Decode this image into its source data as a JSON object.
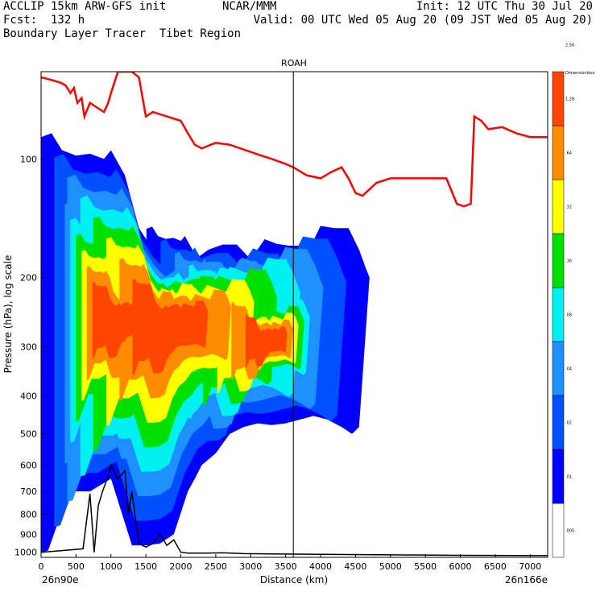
{
  "header": {
    "line1_left": "ACCLIP 15km ARW-GFS init",
    "line1_center": "NCAR/MMM",
    "line1_right": "Init: 12 UTC Thu 30 Jul 20",
    "line2_left": "Fcst:  132 h",
    "line2_right": "Valid: 00 UTC Wed 05 Aug 20 (09 JST Wed 05 Aug 20)",
    "line3_left": "Boundary Layer Tracer  Tibet Region"
  },
  "chart_data": {
    "type": "cross-section contour",
    "title": "ROAH",
    "xlabel": "Distance (km)",
    "ylabel": "Pressure (hPa), log scale",
    "x_start_label": "26n90e",
    "x_end_label": "26n166e",
    "xlim": [
      0,
      7250
    ],
    "ylim": [
      1030,
      60
    ],
    "y_scale": "log",
    "x_ticks": [
      0,
      500,
      1000,
      1500,
      2000,
      2500,
      3000,
      3500,
      4000,
      4500,
      5000,
      5500,
      6000,
      6500,
      7000
    ],
    "y_ticks": [
      100,
      200,
      300,
      400,
      500,
      600,
      700,
      800,
      900,
      1000
    ],
    "vertical_marker_km": 3610,
    "colorbar": {
      "title": "Dimensionless",
      "levels": [
        ".005",
        ".01",
        ".02",
        ".04",
        ".08",
        ".16",
        ".32",
        ".64",
        "1.28",
        "2.56"
      ],
      "colors": [
        "#ffffff",
        "#0000ff",
        "#0050ff",
        "#1e90ff",
        "#00f0f0",
        "#00e000",
        "#ffff00",
        "#ff8c00",
        "#ff4500"
      ]
    },
    "tropopause_line": {
      "color": "#ff0000",
      "x": [
        0,
        150,
        280,
        350,
        420,
        470,
        520,
        580,
        620,
        700,
        800,
        900,
        960,
        1000,
        1100,
        1200,
        1300,
        1400,
        1500,
        1600,
        1800,
        2000,
        2100,
        2200,
        2300,
        2500,
        2700,
        3000,
        3150,
        3300,
        3500,
        3610,
        3800,
        4000,
        4150,
        4300,
        4400,
        4500,
        4600,
        4800,
        5000,
        5200,
        5400,
        5600,
        5800,
        5950,
        6050,
        6150,
        6200,
        6300,
        6400,
        6600,
        6800,
        7000,
        7250
      ],
      "y": [
        62,
        63,
        64,
        65,
        68,
        66,
        72,
        70,
        78,
        72,
        74,
        76,
        72,
        68,
        60,
        60,
        60,
        62,
        78,
        76,
        78,
        80,
        86,
        92,
        94,
        91,
        92,
        96,
        98,
        100,
        103,
        105,
        110,
        112,
        108,
        105,
        112,
        122,
        124,
        115,
        112,
        112,
        112,
        112,
        112,
        130,
        132,
        130,
        78,
        80,
        84,
        83,
        86,
        88,
        88
      ]
    },
    "terrain_line": {
      "color": "#000000",
      "x": [
        0,
        300,
        600,
        700,
        760,
        820,
        880,
        960,
        1000,
        1100,
        1200,
        1250,
        1300,
        1350,
        1400,
        1500,
        1600,
        1700,
        1800,
        1900,
        2000,
        2100,
        2300,
        2600,
        2900,
        3300,
        4000,
        5000,
        6000,
        7250
      ],
      "y": [
        1000,
        990,
        980,
        710,
        1000,
        760,
        700,
        640,
        600,
        650,
        620,
        800,
        700,
        820,
        950,
        970,
        950,
        900,
        960,
        930,
        1000,
        1005,
        1005,
        1003,
        1008,
        1010,
        1012,
        1015,
        1018,
        1020
      ]
    },
    "tracer_contours": [
      {
        "level": ".01",
        "x": [
          0,
          150,
          300,
          500,
          700,
          900,
          1000,
          1200,
          1400,
          1600,
          1800,
          1900,
          2000,
          2100,
          2200,
          2400,
          2600,
          2800,
          3000,
          3200,
          3400,
          3600,
          3800,
          4000,
          4200,
          4400,
          4550,
          4650,
          4700,
          4550,
          4450,
          4300,
          4100,
          3900,
          3700,
          3500,
          3300,
          3100,
          2900,
          2700,
          2500,
          2300,
          2200,
          2100,
          1900,
          1700,
          1500,
          1300,
          1000,
          700,
          400,
          100,
          0
        ],
        "y": [
          88,
          86,
          95,
          98,
          97,
          100,
          95,
          110,
          150,
          170,
          185,
          180,
          175,
          168,
          180,
          170,
          165,
          165,
          180,
          160,
          165,
          170,
          175,
          148,
          150,
          150,
          170,
          190,
          200,
          480,
          500,
          480,
          460,
          450,
          460,
          470,
          475,
          470,
          480,
          500,
          560,
          600,
          650,
          700,
          900,
          950,
          960,
          960,
          650,
          700,
          700,
          990,
          1000
        ]
      }
    ]
  }
}
